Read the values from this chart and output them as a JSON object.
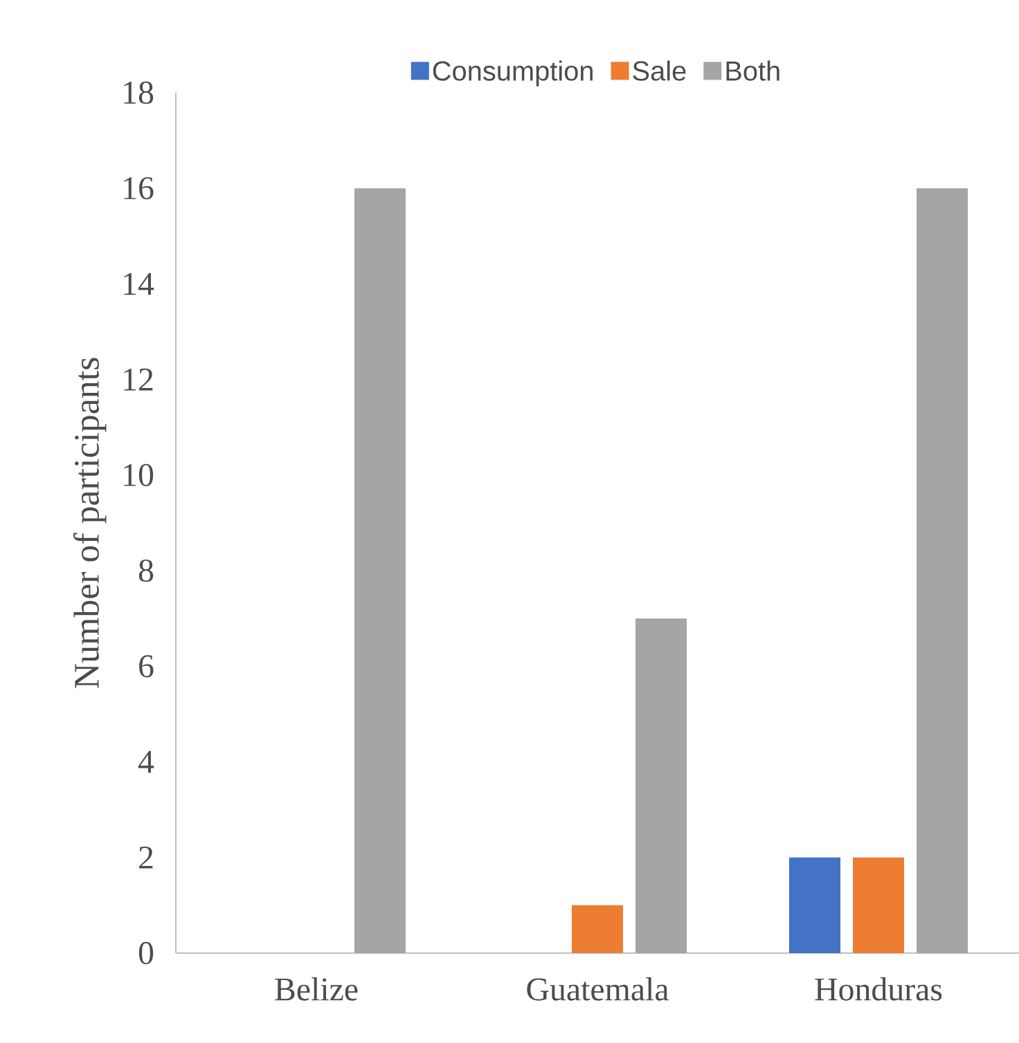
{
  "chart_data": {
    "type": "bar",
    "ylabel": "Number of participants",
    "categories": [
      "Belize",
      "Guatemala",
      "Honduras"
    ],
    "series": [
      {
        "name": "Consumption",
        "color": "#4472c4",
        "values": [
          0,
          0,
          2
        ]
      },
      {
        "name": "Sale",
        "color": "#ed7d31",
        "values": [
          0,
          1,
          2
        ]
      },
      {
        "name": "Both",
        "color": "#a5a5a5",
        "values": [
          16,
          7,
          16
        ]
      }
    ],
    "ylim": [
      0,
      18
    ],
    "yticks": [
      0,
      2,
      4,
      6,
      8,
      10,
      12,
      14,
      16,
      18
    ],
    "grid": false,
    "legend": "top"
  }
}
